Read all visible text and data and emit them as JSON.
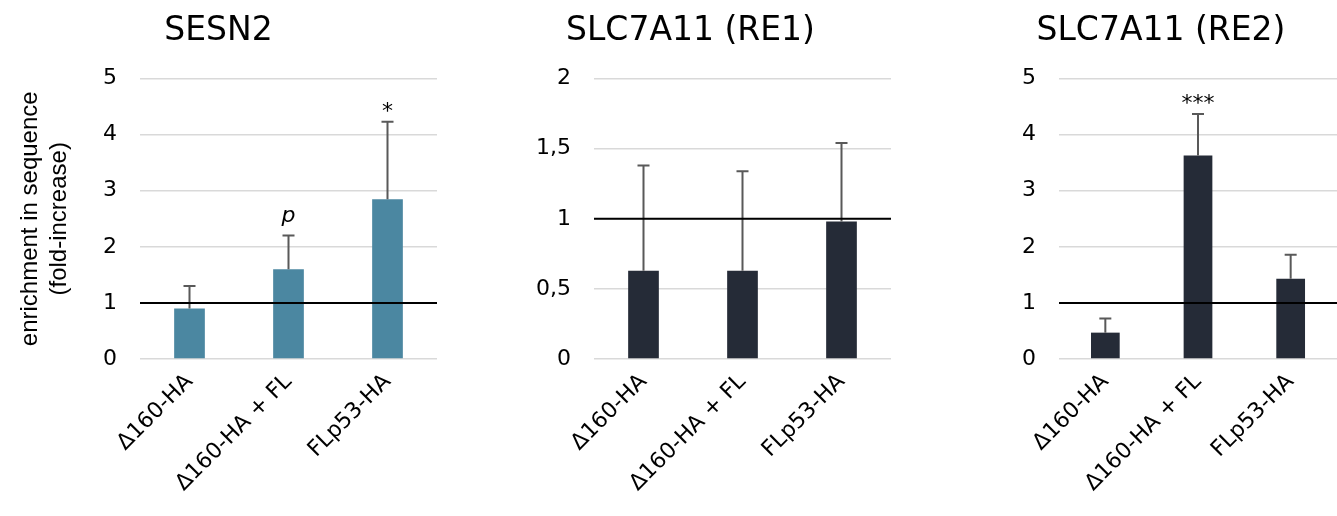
{
  "chart_data": [
    {
      "type": "bar",
      "title": "SESN2",
      "ylabel": "enrichment in sequence\n(fold-increase)",
      "categories": [
        "Δ160-HA",
        "Δ160-HA + FL",
        "FLp53-HA"
      ],
      "values": [
        0.9,
        1.6,
        2.85
      ],
      "errors": [
        [
          0.9,
          1.3
        ],
        [
          1.6,
          2.2
        ],
        [
          2.85,
          4.23
        ]
      ],
      "color": "#4b87a1",
      "ylim": [
        0,
        5
      ],
      "yticks": [
        0,
        1,
        2,
        3,
        4,
        5
      ],
      "grid": "y",
      "ref_lines": [
        {
          "axis": "y",
          "value": 1,
          "color": "#000000"
        }
      ],
      "annotations": [
        "p",
        "*"
      ]
    },
    {
      "type": "bar",
      "title": "SLC7A11 (RE1)",
      "categories": [
        "Δ160-HA",
        "Δ160-HA + FL",
        "FLp53-HA"
      ],
      "values": [
        0.63,
        0.63,
        0.98
      ],
      "errors": [
        [
          0.63,
          1.38
        ],
        [
          0.63,
          1.34
        ],
        [
          0.98,
          1.54
        ]
      ],
      "color": "#252b37",
      "ylim": [
        0,
        2
      ],
      "yticks": [
        0,
        {
          "value": 0.5,
          "label": "0,5"
        },
        1,
        {
          "value": 1.5,
          "label": "1,5"
        },
        2
      ],
      "grid": "y",
      "ref_lines": [
        {
          "axis": "y",
          "value": 1,
          "color": "#000000"
        }
      ]
    },
    {
      "type": "bar",
      "title": "SLC7A11 (RE2)",
      "categories": [
        "Δ160-HA",
        "Δ160-HA + FL",
        "FLp53-HA"
      ],
      "values": [
        0.47,
        3.63,
        1.43
      ],
      "errors": [
        [
          0.47,
          0.72
        ],
        [
          3.63,
          4.37
        ],
        [
          1.43,
          1.86
        ]
      ],
      "color": "#252b37",
      "ylim": [
        0,
        5
      ],
      "yticks": [
        0,
        1,
        2,
        3,
        4,
        5
      ],
      "grid": "y",
      "ref_lines": [
        {
          "axis": "y",
          "value": 1,
          "color": "#000000"
        }
      ],
      "annotations": [
        "***"
      ]
    }
  ]
}
